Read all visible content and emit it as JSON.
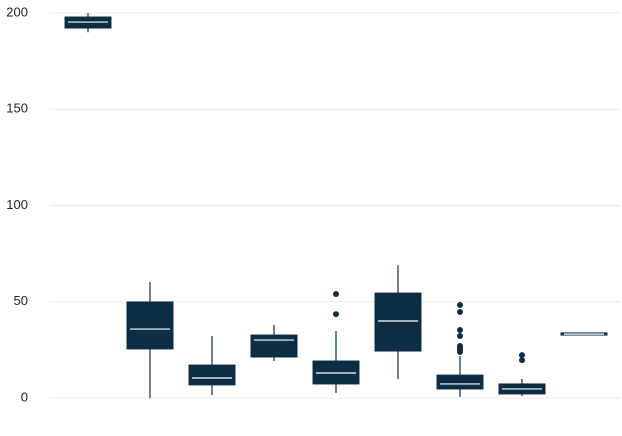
{
  "chart_data": {
    "type": "box",
    "categories": [
      null,
      null,
      null,
      null,
      null,
      null,
      null,
      null,
      null
    ],
    "color": "#0d2d45",
    "median_color": "#ffffff",
    "ylim": [
      0,
      200
    ],
    "yticks": [
      0,
      50,
      100,
      150,
      200
    ],
    "grid": true,
    "boxes": [
      {
        "whisker_low": 190,
        "q1": 192.2,
        "median": 195.3,
        "q3": 197.9,
        "whisker_high": 200,
        "outliers": []
      },
      {
        "whisker_low": 0,
        "q1": 25.5,
        "median": 35.8,
        "q3": 49.9,
        "whisker_high": 60.3,
        "outliers": []
      },
      {
        "whisker_low": 1.6,
        "q1": 6.8,
        "median": 10.4,
        "q3": 17.1,
        "whisker_high": 32.2,
        "outliers": []
      },
      {
        "whisker_low": 19.2,
        "q1": 21.3,
        "median": 30.1,
        "q3": 32.7,
        "whisker_high": 37.9,
        "outliers": []
      },
      {
        "whisker_low": 2.6,
        "q1": 7.3,
        "median": 13,
        "q3": 19.2,
        "whisker_high": 34.8,
        "outliers": [
          54,
          43.6
        ]
      },
      {
        "whisker_low": 9.9,
        "q1": 24.4,
        "median": 40,
        "q3": 54.5,
        "whisker_high": 69,
        "outliers": []
      },
      {
        "whisker_low": 0.5,
        "q1": 4.7,
        "median": 7.3,
        "q3": 11.9,
        "whisker_high": 21.8,
        "outliers": [
          48.3,
          44.7,
          35.3,
          32.2,
          27,
          26,
          24.9,
          23.9
        ]
      },
      {
        "whisker_low": 1,
        "q1": 2.1,
        "median": 4.7,
        "q3": 7.3,
        "whisker_high": 9.9,
        "outliers": [
          22.3,
          19.7
        ]
      },
      {
        "whisker_low": 32.7,
        "q1": 32.7,
        "median": 33.2,
        "q3": 33.8,
        "whisker_high": 33.8,
        "outliers": []
      }
    ]
  }
}
